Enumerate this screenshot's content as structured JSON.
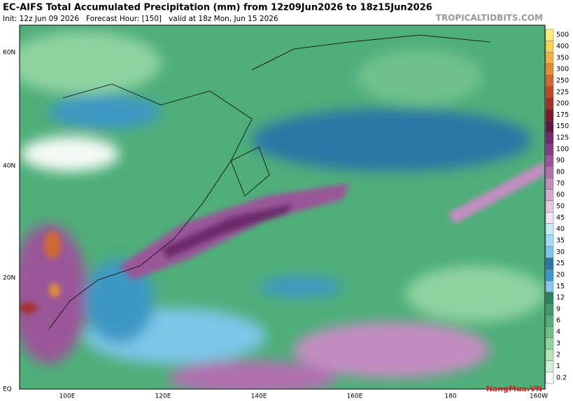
{
  "header": {
    "title": "EC-AIFS Total Accumulated Precipitation (mm) from 12z09Jun2026 to 18z15Jun2026",
    "subtitle": "Init: 12z Jun 09 2026   Forecast Hour: [150]   valid at 18z Mon, Jun 15 2026",
    "site": "TROPICALTIDBITS.COM"
  },
  "map": {
    "lat_labels": [
      "60N",
      "40N",
      "20N",
      "EQ"
    ],
    "lon_labels": [
      "100E",
      "120E",
      "140E",
      "160E",
      "180",
      "160W"
    ]
  },
  "colorbar": {
    "levels": [
      0.2,
      1,
      2,
      3,
      4,
      6,
      9,
      12,
      15,
      20,
      25,
      30,
      35,
      40,
      45,
      50,
      60,
      70,
      80,
      90,
      100,
      125,
      150,
      175,
      200,
      225,
      250,
      300,
      350,
      400,
      500
    ],
    "colors": [
      "#f4fbf5",
      "#d4f0d8",
      "#b3e3bb",
      "#8fd3a0",
      "#6fc18b",
      "#55ad7b",
      "#3f9a6e",
      "#2e8262",
      "#8ac7e3",
      "#3d98c3",
      "#2a77a6",
      "#7cc6e8",
      "#a5dbf2",
      "#c9ebf7",
      "#f2e4f0",
      "#e8c9e2",
      "#d8a8d2",
      "#c58cc1",
      "#b070ae",
      "#9a5699",
      "#833f84",
      "#6b2b6c",
      "#5e1a40",
      "#7a1a2a",
      "#a0302a",
      "#b94a2e",
      "#cf6a34",
      "#e08e3c",
      "#eeb148",
      "#f6d258",
      "#fbee7a"
    ]
  },
  "watermark": "NangMua.VN"
}
